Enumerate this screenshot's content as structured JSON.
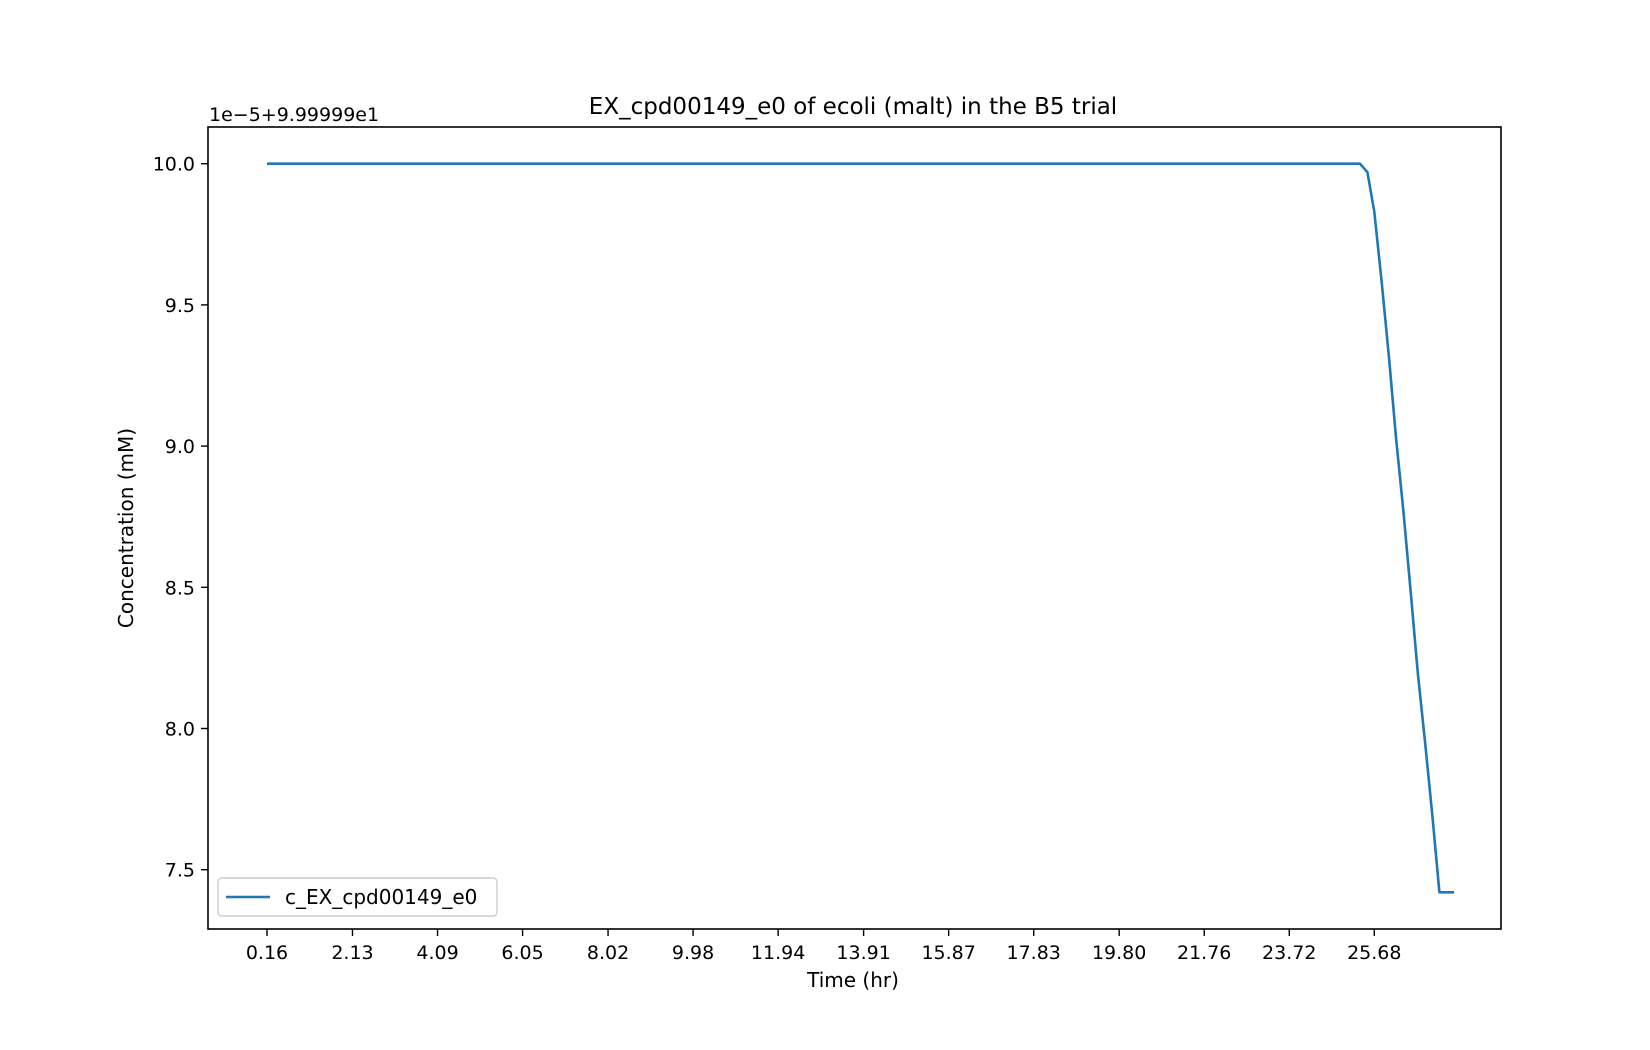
{
  "colors": {
    "series": "#1f77b4",
    "axes": "#000000",
    "legend_border": "#cccccc",
    "background": "#ffffff"
  },
  "chart_data": {
    "type": "line",
    "title": "EX_cpd00149_e0 of ecoli (malt) in the B5 trial",
    "xlabel": "Time (hr)",
    "ylabel": "Concentration (mM)",
    "y_offset_text": "1e−5+9.99999e1",
    "x_tick_labels": [
      "0.16",
      "2.13",
      "4.09",
      "6.05",
      "8.02",
      "9.98",
      "11.94",
      "13.91",
      "15.87",
      "17.83",
      "19.80",
      "21.76",
      "23.72",
      "25.68"
    ],
    "x_ticks": [
      0.16,
      2.13,
      4.09,
      6.05,
      8.02,
      9.98,
      11.94,
      13.91,
      15.87,
      17.83,
      19.8,
      21.76,
      23.72,
      25.68
    ],
    "y_tick_labels": [
      "7.5",
      "8.0",
      "8.5",
      "9.0",
      "9.5",
      "10.0"
    ],
    "y_ticks": [
      7.5,
      8.0,
      8.5,
      9.0,
      9.5,
      10.0
    ],
    "xlim": [
      -1.2,
      28.6
    ],
    "ylim": [
      7.29,
      10.13
    ],
    "grid": false,
    "legend_position": "lower-left",
    "series": [
      {
        "name": "c_EX_cpd00149_e0",
        "x": [
          0.16,
          25.35,
          25.52,
          25.68,
          25.85,
          26.02,
          26.18,
          26.35,
          26.52,
          26.68,
          26.85,
          27.02,
          27.18,
          27.35,
          27.52
        ],
        "y": [
          10.0,
          10.0,
          9.97,
          9.83,
          9.58,
          9.31,
          9.03,
          8.77,
          8.48,
          8.2,
          7.95,
          7.69,
          7.42,
          7.42,
          7.42
        ]
      }
    ]
  }
}
